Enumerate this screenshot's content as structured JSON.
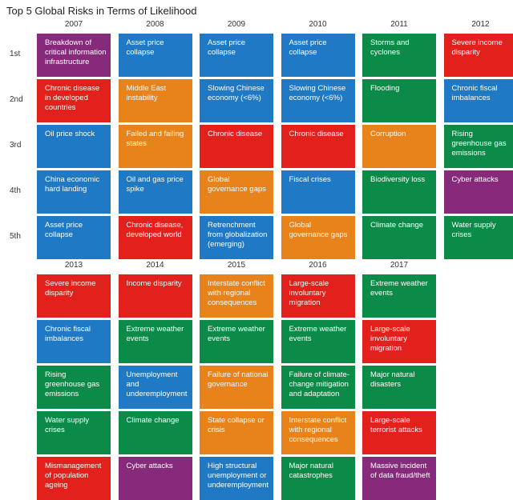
{
  "chart_data": {
    "type": "table",
    "title": "Top 5 Global Risks in Terms of Likelihood",
    "ranks": [
      "1st",
      "2nd",
      "3rd",
      "4th",
      "5th"
    ],
    "category_colors": {
      "economic": "#1f79c4",
      "environmental": "#0c8a47",
      "geopolitical": "#e8821a",
      "societal": "#e3211c",
      "technological": "#882a7c"
    },
    "years": [
      {
        "year": "2007",
        "risks": [
          {
            "label": "Breakdown of critical information infrastructure",
            "category": "technological"
          },
          {
            "label": "Chronic disease in developed countries",
            "category": "societal"
          },
          {
            "label": "Oil price shock",
            "category": "economic"
          },
          {
            "label": "China economic hard landing",
            "category": "economic"
          },
          {
            "label": "Asset price collapse",
            "category": "economic"
          }
        ]
      },
      {
        "year": "2008",
        "risks": [
          {
            "label": "Asset price collapse",
            "category": "economic"
          },
          {
            "label": "Middle East instability",
            "category": "geopolitical"
          },
          {
            "label": "Failed and failing states",
            "category": "geopolitical"
          },
          {
            "label": "Oil and gas price spike",
            "category": "economic"
          },
          {
            "label": "Chronic disease, developed world",
            "category": "societal"
          }
        ]
      },
      {
        "year": "2009",
        "risks": [
          {
            "label": "Asset price collapse",
            "category": "economic"
          },
          {
            "label": "Slowing Chinese economy (<6%)",
            "category": "economic"
          },
          {
            "label": "Chronic disease",
            "category": "societal"
          },
          {
            "label": "Global governance gaps",
            "category": "geopolitical"
          },
          {
            "label": "Retrenchment from globalization (emerging)",
            "category": "economic"
          }
        ]
      },
      {
        "year": "2010",
        "risks": [
          {
            "label": "Asset price collapse",
            "category": "economic"
          },
          {
            "label": "Slowing Chinese economy (<6%)",
            "category": "economic"
          },
          {
            "label": "Chronic disease",
            "category": "societal"
          },
          {
            "label": "Fiscal crises",
            "category": "economic"
          },
          {
            "label": "Global governance gaps",
            "category": "geopolitical"
          }
        ]
      },
      {
        "year": "2011",
        "risks": [
          {
            "label": "Storms and cyclones",
            "category": "environmental"
          },
          {
            "label": "Flooding",
            "category": "environmental"
          },
          {
            "label": "Corruption",
            "category": "geopolitical"
          },
          {
            "label": "Biodiversity loss",
            "category": "environmental"
          },
          {
            "label": "Climate change",
            "category": "environmental"
          }
        ]
      },
      {
        "year": "2012",
        "risks": [
          {
            "label": "Severe income disparity",
            "category": "societal"
          },
          {
            "label": "Chronic fiscal imbalances",
            "category": "economic"
          },
          {
            "label": "Rising greenhouse gas emissions",
            "category": "environmental"
          },
          {
            "label": "Cyber attacks",
            "category": "technological"
          },
          {
            "label": "Water supply crises",
            "category": "environmental"
          }
        ]
      },
      {
        "year": "2013",
        "risks": [
          {
            "label": "Severe income disparity",
            "category": "societal"
          },
          {
            "label": "Chronic fiscal imbalances",
            "category": "economic"
          },
          {
            "label": "Rising greenhouse gas emissions",
            "category": "environmental"
          },
          {
            "label": "Water supply crises",
            "category": "environmental"
          },
          {
            "label": "Mismanagement of population ageing",
            "category": "societal"
          }
        ]
      },
      {
        "year": "2014",
        "risks": [
          {
            "label": "Income disparity",
            "category": "societal"
          },
          {
            "label": "Extreme weather events",
            "category": "environmental"
          },
          {
            "label": "Unemployment and underemployment",
            "category": "economic"
          },
          {
            "label": "Climate change",
            "category": "environmental"
          },
          {
            "label": "Cyber attacks",
            "category": "technological"
          }
        ]
      },
      {
        "year": "2015",
        "risks": [
          {
            "label": "Interstate conflict with regional consequences",
            "category": "geopolitical"
          },
          {
            "label": "Extreme weather events",
            "category": "environmental"
          },
          {
            "label": "Failure of national governance",
            "category": "geopolitical"
          },
          {
            "label": "State collapse or crisis",
            "category": "geopolitical"
          },
          {
            "label": "High structural unemployment or underemployment",
            "category": "economic"
          }
        ]
      },
      {
        "year": "2016",
        "risks": [
          {
            "label": "Large-scale involuntary migration",
            "category": "societal"
          },
          {
            "label": "Extreme weather events",
            "category": "environmental"
          },
          {
            "label": "Failure of climate-change mitigation and adaptation",
            "category": "environmental"
          },
          {
            "label": "Interstate conflict with regional consequences",
            "category": "geopolitical"
          },
          {
            "label": "Major natural catastrophes",
            "category": "environmental"
          }
        ]
      },
      {
        "year": "2017",
        "risks": [
          {
            "label": "Extreme weather events",
            "category": "environmental"
          },
          {
            "label": "Large-scale involuntary migration",
            "category": "societal"
          },
          {
            "label": "Major natural disasters",
            "category": "environmental"
          },
          {
            "label": "Large-scale terrorist attacks",
            "category": "societal"
          },
          {
            "label": "Massive incident of data fraud/theft",
            "category": "technological"
          }
        ]
      }
    ]
  }
}
